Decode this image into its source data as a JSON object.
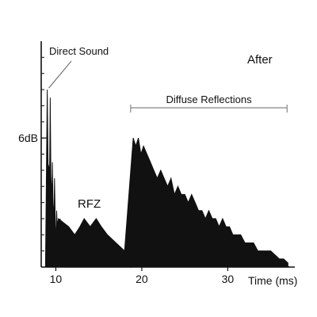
{
  "chart_data": {
    "type": "area",
    "title": "",
    "xlabel": "Time (ms)",
    "ylabel": "",
    "xlim": [
      8.3,
      37.8
    ],
    "ylim": [
      0,
      28
    ],
    "x_ticks": [
      10,
      20,
      30
    ],
    "y_tick_labels": [
      {
        "y": 16,
        "label": "6dB"
      }
    ],
    "colors": {
      "line": "#111111",
      "fill": "#111111",
      "background": "#ffffff"
    },
    "annotations": {
      "direct_sound": "Direct Sound",
      "after": "After",
      "diffuse_reflections": "Diffuse Reflections",
      "rfz": "RFZ"
    },
    "diffuse_span": [
      18.7,
      36.9
    ],
    "series": [
      {
        "points": [
          [
            8.8,
            0
          ],
          [
            9.0,
            22
          ],
          [
            9.2,
            3
          ],
          [
            9.35,
            21
          ],
          [
            9.5,
            2
          ],
          [
            9.6,
            13
          ],
          [
            9.75,
            3
          ],
          [
            9.85,
            11
          ],
          [
            10.0,
            2
          ],
          [
            10.1,
            7
          ],
          [
            10.3,
            1
          ],
          [
            10.5,
            6
          ],
          [
            10.7,
            1
          ],
          [
            10.9,
            4
          ],
          [
            11.1,
            0.5
          ],
          [
            11.5,
            1.5
          ],
          [
            11.8,
            0.5
          ],
          [
            12.2,
            2
          ],
          [
            12.5,
            1
          ],
          [
            12.8,
            4
          ],
          [
            13.0,
            1
          ],
          [
            13.3,
            5
          ],
          [
            13.6,
            1
          ],
          [
            14.0,
            4
          ],
          [
            14.3,
            1
          ],
          [
            14.7,
            5
          ],
          [
            15.0,
            2
          ],
          [
            15.3,
            4
          ],
          [
            15.6,
            1
          ],
          [
            16.0,
            3
          ],
          [
            16.5,
            1
          ],
          [
            17.0,
            2
          ],
          [
            17.4,
            0.5
          ],
          [
            17.8,
            1
          ],
          [
            18.3,
            0.5
          ],
          [
            18.7,
            0
          ],
          [
            18.8,
            7
          ],
          [
            19.0,
            10
          ],
          [
            19.2,
            6
          ],
          [
            19.4,
            13
          ],
          [
            19.6,
            8
          ],
          [
            19.8,
            13
          ],
          [
            20.0,
            7
          ],
          [
            20.2,
            12
          ],
          [
            20.4,
            6
          ],
          [
            20.6,
            11
          ],
          [
            20.8,
            5
          ],
          [
            21.0,
            12
          ],
          [
            21.2,
            7
          ],
          [
            21.4,
            9
          ],
          [
            21.6,
            5
          ],
          [
            21.8,
            8
          ],
          [
            22.0,
            5
          ],
          [
            22.2,
            10
          ],
          [
            22.4,
            6
          ],
          [
            22.6,
            9
          ],
          [
            22.8,
            5
          ],
          [
            23.0,
            8
          ],
          [
            23.2,
            6
          ],
          [
            23.4,
            9
          ],
          [
            23.6,
            5
          ],
          [
            23.8,
            8
          ],
          [
            24.0,
            6
          ],
          [
            24.2,
            7
          ],
          [
            24.4,
            5
          ],
          [
            24.6,
            9
          ],
          [
            24.8,
            5
          ],
          [
            25.0,
            7
          ],
          [
            25.2,
            5
          ],
          [
            25.4,
            7
          ],
          [
            25.6,
            4
          ],
          [
            25.8,
            6
          ],
          [
            26.0,
            4
          ],
          [
            26.2,
            7
          ],
          [
            26.4,
            4
          ],
          [
            26.6,
            6
          ],
          [
            26.8,
            3
          ],
          [
            27.0,
            6
          ],
          [
            27.2,
            3
          ],
          [
            27.4,
            5
          ],
          [
            27.6,
            3
          ],
          [
            27.8,
            5
          ],
          [
            28.0,
            2
          ],
          [
            28.2,
            4
          ],
          [
            28.4,
            2
          ],
          [
            28.6,
            4
          ],
          [
            28.8,
            2
          ],
          [
            29.0,
            3
          ],
          [
            29.2,
            2
          ],
          [
            29.4,
            3
          ],
          [
            29.6,
            2
          ],
          [
            29.8,
            3
          ],
          [
            30.0,
            2
          ],
          [
            30.2,
            3
          ],
          [
            30.4,
            1.5
          ],
          [
            30.6,
            2.5
          ],
          [
            30.8,
            1.5
          ],
          [
            31.0,
            2
          ],
          [
            31.5,
            1
          ],
          [
            32.0,
            2
          ],
          [
            32.5,
            1
          ],
          [
            33.0,
            1.5
          ],
          [
            33.5,
            1
          ],
          [
            34.0,
            1.2
          ],
          [
            34.5,
            0.8
          ],
          [
            35.0,
            1
          ],
          [
            35.5,
            0.5
          ],
          [
            36.0,
            0.8
          ],
          [
            36.5,
            0.3
          ],
          [
            37.2,
            0
          ]
        ]
      },
      {
        "points": [
          [
            9.0,
            13
          ],
          [
            9.35,
            12
          ],
          [
            10.0,
            4
          ],
          [
            10.3,
            6
          ],
          [
            11.5,
            5
          ],
          [
            12.2,
            4
          ],
          [
            12.8,
            5
          ],
          [
            13.3,
            6
          ],
          [
            14.0,
            5
          ],
          [
            14.7,
            6
          ],
          [
            15.3,
            5
          ],
          [
            16.0,
            4
          ],
          [
            17.0,
            3
          ],
          [
            18.0,
            2
          ],
          [
            19.0,
            16
          ],
          [
            19.3,
            15
          ],
          [
            19.6,
            16
          ],
          [
            19.9,
            14
          ],
          [
            20.2,
            15
          ],
          [
            20.6,
            14
          ],
          [
            21.0,
            13
          ],
          [
            21.4,
            12
          ],
          [
            21.8,
            11
          ],
          [
            22.2,
            12
          ],
          [
            22.6,
            11
          ],
          [
            23.0,
            10
          ],
          [
            23.4,
            11
          ],
          [
            23.8,
            9
          ],
          [
            24.2,
            10
          ],
          [
            24.6,
            9
          ],
          [
            25.0,
            9
          ],
          [
            25.4,
            8
          ],
          [
            25.8,
            9
          ],
          [
            26.2,
            8
          ],
          [
            26.6,
            7
          ],
          [
            27.0,
            7
          ],
          [
            27.4,
            6
          ],
          [
            27.8,
            7
          ],
          [
            28.2,
            6
          ],
          [
            28.6,
            6
          ],
          [
            29.0,
            5
          ],
          [
            29.4,
            6
          ],
          [
            29.8,
            5
          ],
          [
            30.2,
            5
          ],
          [
            30.6,
            4
          ],
          [
            31.0,
            4
          ],
          [
            31.5,
            4
          ],
          [
            32.0,
            3
          ],
          [
            32.5,
            3
          ],
          [
            33.0,
            3
          ],
          [
            33.5,
            2
          ],
          [
            34.0,
            2
          ],
          [
            34.5,
            2
          ],
          [
            35.0,
            2
          ],
          [
            35.5,
            1.5
          ],
          [
            36.0,
            1
          ],
          [
            36.5,
            1
          ],
          [
            37.0,
            0.5
          ]
        ]
      }
    ]
  }
}
